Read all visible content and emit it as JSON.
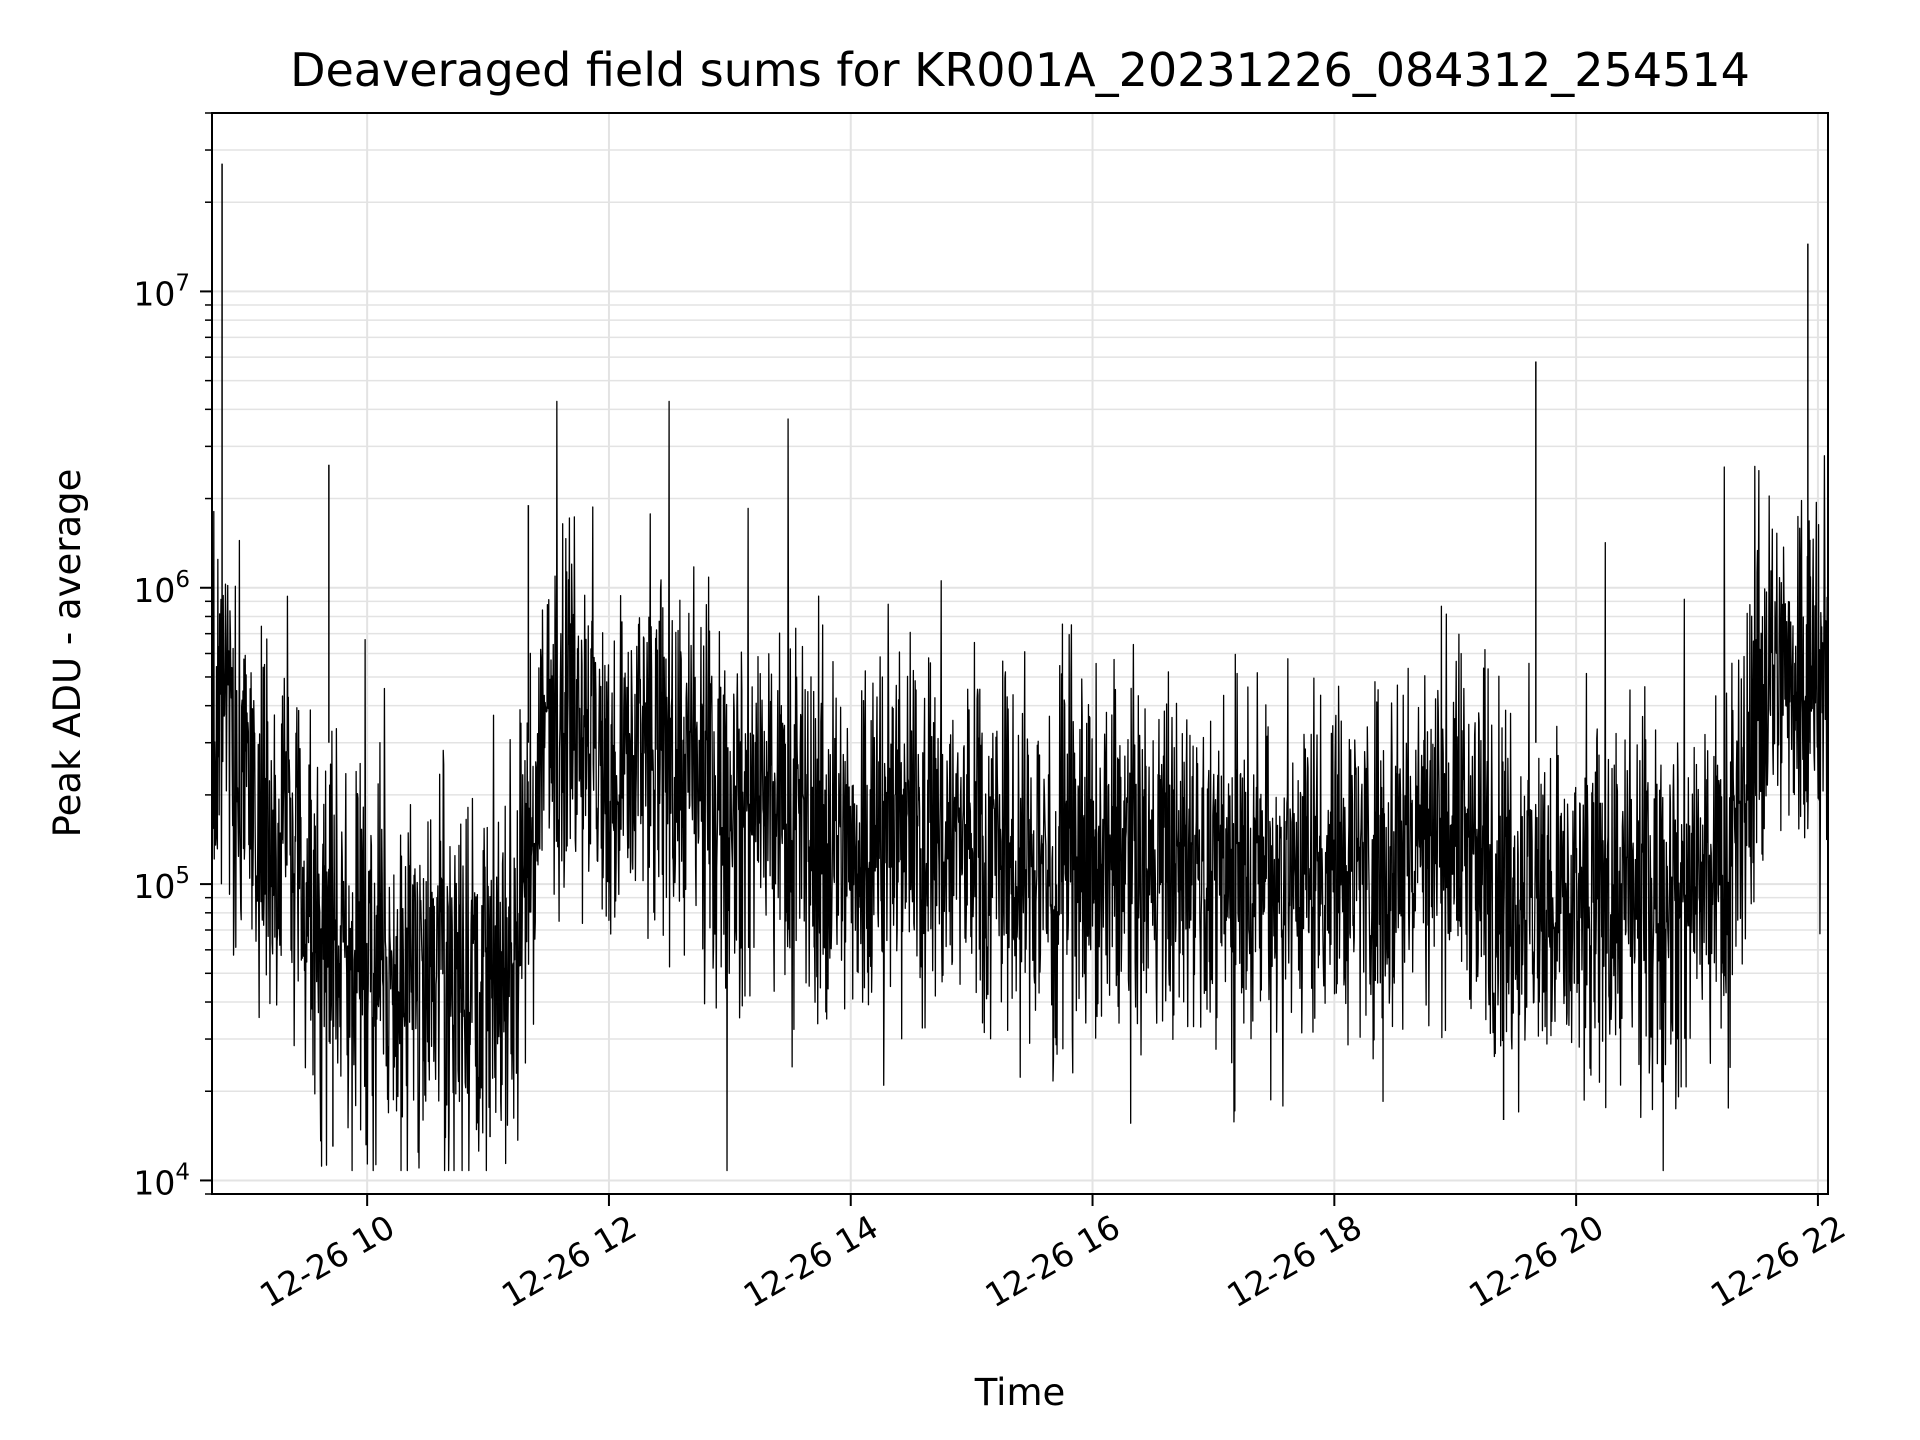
{
  "chart_data": {
    "type": "line",
    "title": "Deaveraged field sums for KR001A_20231226_084312_254514",
    "xlabel": "Time",
    "ylabel": "Peak ADU - average",
    "xscale": "time",
    "yscale": "log",
    "xlim": [
      "2023-12-26 08:43",
      "2023-12-26 22:05"
    ],
    "ylim": [
      9000,
      40000000
    ],
    "grid": true,
    "line_color": "#000000",
    "x_ticks": [
      {
        "value": "2023-12-26 10:00",
        "label": "12-26 10"
      },
      {
        "value": "2023-12-26 12:00",
        "label": "12-26 12"
      },
      {
        "value": "2023-12-26 14:00",
        "label": "12-26 14"
      },
      {
        "value": "2023-12-26 16:00",
        "label": "12-26 16"
      },
      {
        "value": "2023-12-26 18:00",
        "label": "12-26 18"
      },
      {
        "value": "2023-12-26 20:00",
        "label": "12-26 20"
      },
      {
        "value": "2023-12-26 22:00",
        "label": "12-26 22"
      }
    ],
    "y_ticks": [
      {
        "value": 10000,
        "base": "10",
        "exp": "4"
      },
      {
        "value": 100000,
        "base": "10",
        "exp": "5"
      },
      {
        "value": 1000000,
        "base": "10",
        "exp": "6"
      },
      {
        "value": 10000000,
        "base": "10",
        "exp": "7"
      }
    ],
    "series": [
      {
        "x": [
          "2023-12-26 08:43",
          "2023-12-26 08:50",
          "2023-12-26 08:57",
          "2023-12-26 09:05",
          "2023-12-26 09:12",
          "2023-12-26 09:20",
          "2023-12-26 09:30",
          "2023-12-26 09:40",
          "2023-12-26 09:50",
          "2023-12-26 10:00",
          "2023-12-26 10:15",
          "2023-12-26 10:30",
          "2023-12-26 10:45",
          "2023-12-26 11:00",
          "2023-12-26 11:15",
          "2023-12-26 11:30",
          "2023-12-26 11:45",
          "2023-12-26 12:00",
          "2023-12-26 12:15",
          "2023-12-26 12:30",
          "2023-12-26 12:45",
          "2023-12-26 13:00",
          "2023-12-26 13:20",
          "2023-12-26 13:40",
          "2023-12-26 14:00",
          "2023-12-26 14:20",
          "2023-12-26 14:40",
          "2023-12-26 15:00",
          "2023-12-26 15:20",
          "2023-12-26 15:40",
          "2023-12-26 16:00",
          "2023-12-26 16:20",
          "2023-12-26 16:40",
          "2023-12-26 17:00",
          "2023-12-26 17:20",
          "2023-12-26 17:40",
          "2023-12-26 18:00",
          "2023-12-26 18:20",
          "2023-12-26 18:40",
          "2023-12-26 19:00",
          "2023-12-26 19:20",
          "2023-12-26 19:40",
          "2023-12-26 20:00",
          "2023-12-26 20:20",
          "2023-12-26 20:40",
          "2023-12-26 21:00",
          "2023-12-26 21:20",
          "2023-12-26 21:30",
          "2023-12-26 21:45",
          "2023-12-26 22:00",
          "2023-12-26 22:05"
        ],
        "y": [
          350000,
          400000,
          250000,
          150000,
          120000,
          200000,
          90000,
          70000,
          60000,
          55000,
          45000,
          60000,
          55000,
          50000,
          60000,
          400000,
          450000,
          200000,
          300000,
          250000,
          220000,
          180000,
          170000,
          140000,
          130000,
          160000,
          150000,
          140000,
          120000,
          110000,
          110000,
          120000,
          120000,
          100000,
          110000,
          110000,
          130000,
          120000,
          140000,
          170000,
          100000,
          90000,
          80000,
          85000,
          90000,
          85000,
          120000,
          450000,
          550000,
          500000,
          500000
        ]
      }
    ],
    "spikes": [
      {
        "x": "2023-12-26 08:48",
        "y": 27000000
      },
      {
        "x": "2023-12-26 09:41",
        "y": 2600000
      },
      {
        "x": "2023-12-26 09:43",
        "y": 13000
      },
      {
        "x": "2023-12-26 11:20",
        "y": 1900000
      },
      {
        "x": "2023-12-26 11:01",
        "y": 14000
      },
      {
        "x": "2023-12-26 19:40",
        "y": 5800000
      },
      {
        "x": "2023-12-26 19:24",
        "y": 16000
      },
      {
        "x": "2023-12-26 21:55",
        "y": 14500000
      },
      {
        "x": "2023-12-26 21:56",
        "y": 1450000
      }
    ]
  }
}
